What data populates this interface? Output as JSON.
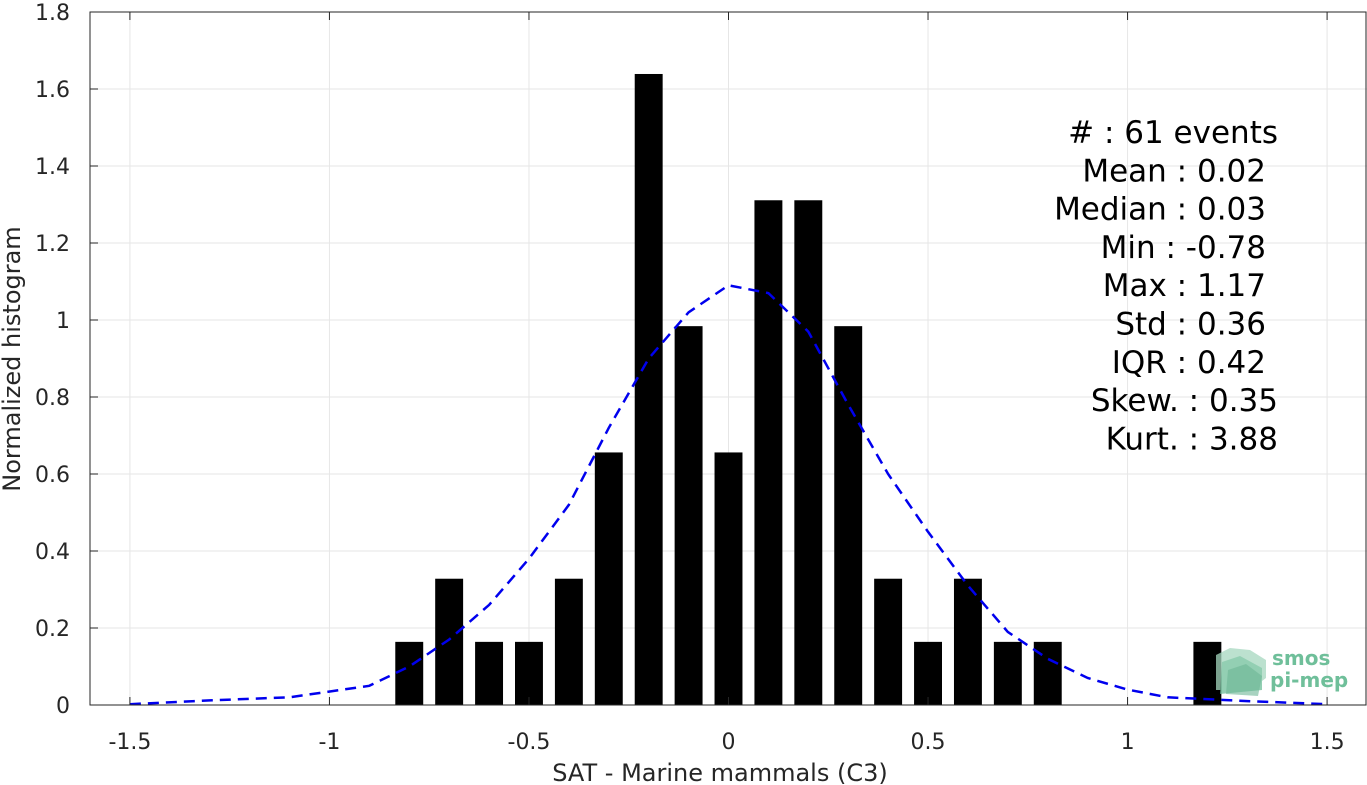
{
  "chart_data": {
    "type": "bar",
    "xlabel": "SAT - Marine mammals (C3)",
    "ylabel": "Normalized histogram",
    "xlim": [
      -1.6,
      1.6
    ],
    "ylim": [
      0,
      1.8
    ],
    "grid": true,
    "xticks": [
      -1.5,
      -1,
      -0.5,
      0,
      0.5,
      1,
      1.5
    ],
    "xtick_labels": [
      "-1.5",
      "-1",
      "-0.5",
      "0",
      "0.5",
      "1",
      "1.5"
    ],
    "yticks": [
      0,
      0.2,
      0.4,
      0.6,
      0.8,
      1,
      1.2,
      1.4,
      1.6,
      1.8
    ],
    "ytick_labels": [
      "0",
      "0.2",
      "0.4",
      "0.6",
      "0.8",
      "1",
      "1.2",
      "1.4",
      "1.6",
      "1.8"
    ],
    "bar_width": 0.07,
    "bars": {
      "x": [
        -0.8,
        -0.7,
        -0.6,
        -0.5,
        -0.4,
        -0.3,
        -0.2,
        -0.1,
        0.0,
        0.1,
        0.2,
        0.3,
        0.4,
        0.5,
        0.6,
        0.7,
        0.8,
        1.2
      ],
      "values": [
        0.164,
        0.328,
        0.164,
        0.164,
        0.328,
        0.656,
        1.639,
        0.984,
        0.656,
        1.311,
        1.311,
        0.984,
        0.328,
        0.164,
        0.328,
        0.164,
        0.164,
        0.164
      ]
    },
    "fit_curve": {
      "style": "dashed",
      "color": "#0000ee",
      "x": [
        -1.5,
        -1.3,
        -1.1,
        -0.9,
        -0.8,
        -0.7,
        -0.6,
        -0.5,
        -0.4,
        -0.3,
        -0.2,
        -0.1,
        0.0,
        0.1,
        0.2,
        0.3,
        0.4,
        0.5,
        0.6,
        0.7,
        0.8,
        0.9,
        1.0,
        1.1,
        1.3,
        1.5
      ],
      "y": [
        0.002,
        0.012,
        0.02,
        0.05,
        0.1,
        0.17,
        0.26,
        0.38,
        0.52,
        0.72,
        0.9,
        1.02,
        1.09,
        1.07,
        0.97,
        0.78,
        0.6,
        0.45,
        0.31,
        0.19,
        0.12,
        0.07,
        0.04,
        0.02,
        0.01,
        0.002
      ]
    },
    "stats": [
      "#  : 61 events",
      "Mean : 0.02",
      "Median : 0.03",
      "Min : -0.78",
      "Max : 1.17",
      "Std : 0.36",
      "IQR : 0.42",
      "Skew. : 0.35",
      "Kurt. : 3.88"
    ]
  },
  "logo": {
    "line1": "smos",
    "line2": "pi-mep",
    "color": "#6fbf9a"
  }
}
